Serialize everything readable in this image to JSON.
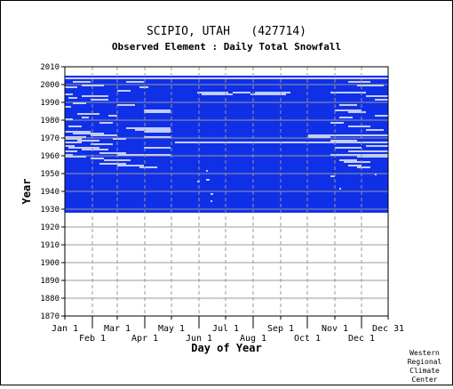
{
  "chart_data": {
    "type": "heatmap",
    "title": "SCIPIO, UTAH   (427714)",
    "subtitle": "Observed Element : Daily Total Snowfall",
    "xlabel": "Day of Year",
    "ylabel": "Year",
    "xlim": [
      1,
      365
    ],
    "ylim": [
      1870,
      2010
    ],
    "record_years": [
      1928,
      2004
    ],
    "colors": {
      "data": "#1030e8",
      "grid": "#999999",
      "axis": "#000000",
      "missing": "#ffffff"
    },
    "y_ticks": [
      {
        "value": 2010,
        "label": "2010"
      },
      {
        "value": 2000,
        "label": "2000"
      },
      {
        "value": 1990,
        "label": "1990"
      },
      {
        "value": 1980,
        "label": "1980"
      },
      {
        "value": 1970,
        "label": "1970"
      },
      {
        "value": 1960,
        "label": "1960"
      },
      {
        "value": 1950,
        "label": "1950"
      },
      {
        "value": 1940,
        "label": "1940"
      },
      {
        "value": 1930,
        "label": "1930"
      },
      {
        "value": 1920,
        "label": "1920"
      },
      {
        "value": 1910,
        "label": "1910"
      },
      {
        "value": 1900,
        "label": "1900"
      },
      {
        "value": 1890,
        "label": "1890"
      },
      {
        "value": 1880,
        "label": "1880"
      },
      {
        "value": 1870,
        "label": "1870"
      }
    ],
    "x_ticks": [
      {
        "day": 1,
        "label": "Jan 1",
        "row": 0
      },
      {
        "day": 32,
        "label": "Feb 1",
        "row": 1
      },
      {
        "day": 60,
        "label": "Mar 1",
        "row": 0
      },
      {
        "day": 91,
        "label": "Apr 1",
        "row": 1
      },
      {
        "day": 121,
        "label": "May 1",
        "row": 0
      },
      {
        "day": 152,
        "label": "Jun 1",
        "row": 1
      },
      {
        "day": 182,
        "label": "Jul 1",
        "row": 0
      },
      {
        "day": 213,
        "label": "Aug 1",
        "row": 1
      },
      {
        "day": 244,
        "label": "Sep 1",
        "row": 0
      },
      {
        "day": 274,
        "label": "Oct 1",
        "row": 1
      },
      {
        "day": 305,
        "label": "Nov 1",
        "row": 0
      },
      {
        "day": 335,
        "label": "Dec 1",
        "row": 1
      },
      {
        "day": 365,
        "label": "Dec 31",
        "row": 0
      }
    ],
    "missing_segments": [
      {
        "year": 2003,
        "start": 1,
        "end": 365
      },
      {
        "year": 2001,
        "start": 10,
        "end": 30
      },
      {
        "year": 2001,
        "start": 70,
        "end": 90
      },
      {
        "year": 2001,
        "start": 320,
        "end": 345
      },
      {
        "year": 1999,
        "start": 20,
        "end": 45
      },
      {
        "year": 1999,
        "start": 330,
        "end": 360
      },
      {
        "year": 1998,
        "start": 1,
        "end": 15
      },
      {
        "year": 1998,
        "start": 85,
        "end": 95
      },
      {
        "year": 1996,
        "start": 60,
        "end": 75
      },
      {
        "year": 1995,
        "start": 150,
        "end": 185
      },
      {
        "year": 1995,
        "start": 190,
        "end": 210
      },
      {
        "year": 1995,
        "start": 215,
        "end": 255
      },
      {
        "year": 1995,
        "start": 300,
        "end": 340
      },
      {
        "year": 1994,
        "start": 1,
        "end": 10
      },
      {
        "year": 1994,
        "start": 155,
        "end": 190
      },
      {
        "year": 1994,
        "start": 210,
        "end": 250
      },
      {
        "year": 1993,
        "start": 20,
        "end": 50
      },
      {
        "year": 1993,
        "start": 340,
        "end": 365
      },
      {
        "year": 1992,
        "start": 5,
        "end": 15
      },
      {
        "year": 1991,
        "start": 30,
        "end": 50
      },
      {
        "year": 1991,
        "start": 350,
        "end": 365
      },
      {
        "year": 1989,
        "start": 10,
        "end": 25
      },
      {
        "year": 1988,
        "start": 60,
        "end": 80
      },
      {
        "year": 1988,
        "start": 310,
        "end": 330
      },
      {
        "year": 1987,
        "start": 1,
        "end": 8
      },
      {
        "year": 1985,
        "start": 90,
        "end": 120
      },
      {
        "year": 1985,
        "start": 305,
        "end": 335
      },
      {
        "year": 1984,
        "start": 90,
        "end": 120
      },
      {
        "year": 1984,
        "start": 320,
        "end": 340
      },
      {
        "year": 1983,
        "start": 15,
        "end": 40
      },
      {
        "year": 1982,
        "start": 50,
        "end": 60
      },
      {
        "year": 1982,
        "start": 350,
        "end": 365
      },
      {
        "year": 1981,
        "start": 20,
        "end": 28
      },
      {
        "year": 1981,
        "start": 310,
        "end": 325
      },
      {
        "year": 1980,
        "start": 1,
        "end": 10
      },
      {
        "year": 1978,
        "start": 40,
        "end": 55
      },
      {
        "year": 1978,
        "start": 300,
        "end": 315
      },
      {
        "year": 1976,
        "start": 5,
        "end": 20
      },
      {
        "year": 1976,
        "start": 320,
        "end": 345
      },
      {
        "year": 1975,
        "start": 70,
        "end": 120
      },
      {
        "year": 1974,
        "start": 80,
        "end": 120
      },
      {
        "year": 1974,
        "start": 340,
        "end": 360
      },
      {
        "year": 1973,
        "start": 1,
        "end": 30
      },
      {
        "year": 1973,
        "start": 90,
        "end": 120
      },
      {
        "year": 1972,
        "start": 10,
        "end": 45
      },
      {
        "year": 1971,
        "start": 30,
        "end": 60
      },
      {
        "year": 1971,
        "start": 275,
        "end": 365
      },
      {
        "year": 1970,
        "start": 1,
        "end": 25
      },
      {
        "year": 1970,
        "start": 90,
        "end": 120
      },
      {
        "year": 1970,
        "start": 275,
        "end": 300
      },
      {
        "year": 1969,
        "start": 1,
        "end": 20
      },
      {
        "year": 1969,
        "start": 55,
        "end": 70
      },
      {
        "year": 1968,
        "start": 15,
        "end": 40
      },
      {
        "year": 1968,
        "start": 300,
        "end": 330
      },
      {
        "year": 1967,
        "start": 1,
        "end": 20
      },
      {
        "year": 1967,
        "start": 125,
        "end": 365
      },
      {
        "year": 1966,
        "start": 30,
        "end": 55
      },
      {
        "year": 1965,
        "start": 1,
        "end": 12
      },
      {
        "year": 1965,
        "start": 340,
        "end": 365
      },
      {
        "year": 1964,
        "start": 5,
        "end": 40
      },
      {
        "year": 1964,
        "start": 90,
        "end": 120
      },
      {
        "year": 1964,
        "start": 305,
        "end": 335
      },
      {
        "year": 1963,
        "start": 20,
        "end": 50
      },
      {
        "year": 1962,
        "start": 1,
        "end": 15
      },
      {
        "year": 1962,
        "start": 320,
        "end": 365
      },
      {
        "year": 1961,
        "start": 40,
        "end": 70
      },
      {
        "year": 1960,
        "start": 1,
        "end": 10
      },
      {
        "year": 1960,
        "start": 60,
        "end": 120
      },
      {
        "year": 1960,
        "start": 300,
        "end": 365
      },
      {
        "year": 1959,
        "start": 1,
        "end": 25
      },
      {
        "year": 1959,
        "start": 330,
        "end": 365
      },
      {
        "year": 1958,
        "start": 30,
        "end": 45
      },
      {
        "year": 1957,
        "start": 45,
        "end": 75
      },
      {
        "year": 1957,
        "start": 310,
        "end": 330
      },
      {
        "year": 1956,
        "start": 315,
        "end": 345
      },
      {
        "year": 1955,
        "start": 40,
        "end": 70
      },
      {
        "year": 1954,
        "start": 60,
        "end": 90
      },
      {
        "year": 1954,
        "start": 320,
        "end": 335
      },
      {
        "year": 1953,
        "start": 85,
        "end": 105
      },
      {
        "year": 1953,
        "start": 330,
        "end": 345
      },
      {
        "year": 1951,
        "start": 160,
        "end": 162
      },
      {
        "year": 1949,
        "start": 350,
        "end": 352
      },
      {
        "year": 1948,
        "start": 300,
        "end": 305
      },
      {
        "year": 1946,
        "start": 160,
        "end": 164
      },
      {
        "year": 1945,
        "start": 150,
        "end": 153
      },
      {
        "year": 1941,
        "start": 310,
        "end": 312
      },
      {
        "year": 1938,
        "start": 165,
        "end": 168
      },
      {
        "year": 1934,
        "start": 165,
        "end": 167
      }
    ],
    "footer": [
      "Western",
      "Regional",
      "Climate",
      "Center"
    ]
  }
}
